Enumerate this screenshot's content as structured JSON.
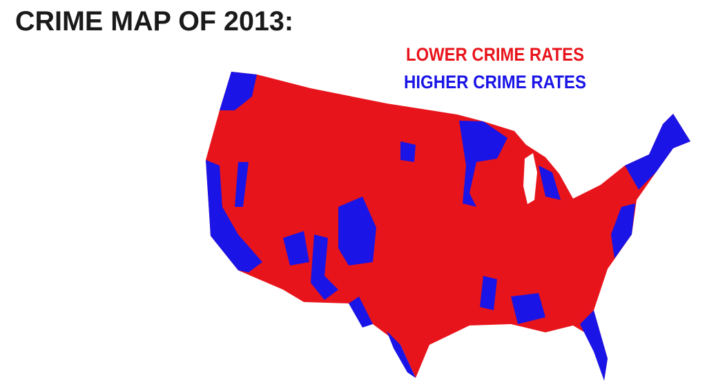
{
  "title": "CRIME MAP OF 2013:",
  "legend": [
    {
      "label": "LOWER CRIME RATES",
      "color": "#e8141b"
    },
    {
      "label": "HIGHER CRIME RATES",
      "color": "#1a14e6"
    }
  ]
}
